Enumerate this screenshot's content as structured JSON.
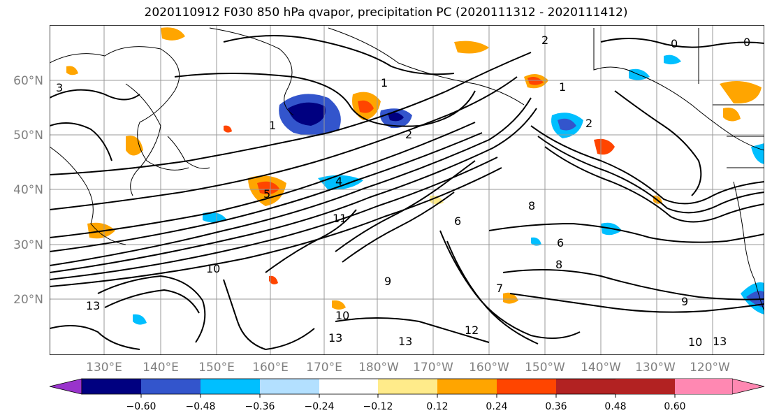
{
  "title": "2020110912 F030 850 hPa qvapor, precipitation PC (2020111312 - 2020111412)",
  "map": {
    "lat_labels": [
      "60°N",
      "50°N",
      "40°N",
      "30°N",
      "20°N"
    ],
    "lon_labels": [
      "130°E",
      "140°E",
      "150°E",
      "160°E",
      "170°E",
      "180°W",
      "170°W",
      "160°W",
      "150°W",
      "140°W",
      "130°W",
      "120°W"
    ],
    "contour_labels": [
      "3",
      "0",
      "1",
      "2",
      "4",
      "5",
      "8",
      "9",
      "10",
      "11",
      "12",
      "13",
      "6",
      "7"
    ],
    "gridlines": true
  },
  "colorbar": {
    "colors": [
      "#9933cc",
      "#000080",
      "#3355cc",
      "#00bfff",
      "#b3e0ff",
      "#ffffff",
      "#ffeb8a",
      "#ffa500",
      "#ff4500",
      "#b22222",
      "#ff88b2"
    ],
    "tick_labels": [
      "−0.60",
      "−0.48",
      "−0.36",
      "−0.24",
      "−0.12",
      "0.12",
      "0.24",
      "0.36",
      "0.48",
      "0.60"
    ],
    "extend": "both"
  }
}
